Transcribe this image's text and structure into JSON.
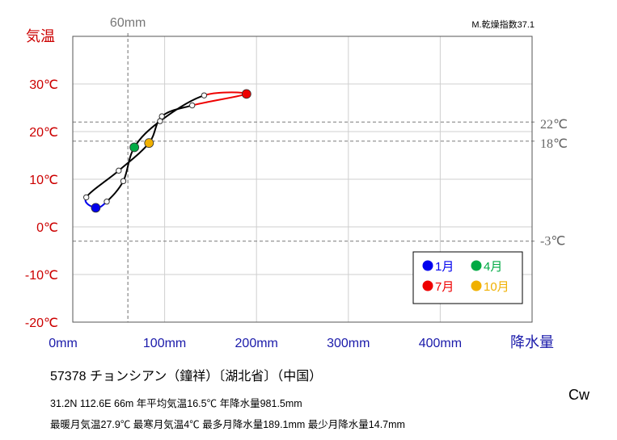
{
  "chart_data": {
    "type": "line",
    "title": "",
    "index_label": "M.乾燥指数37.1",
    "xlabel": "降水量",
    "ylabel": "気温",
    "xlim": [
      0,
      500
    ],
    "ylim": [
      -20,
      40
    ],
    "x_ticks": [
      {
        "value": 0,
        "label": "0mm"
      },
      {
        "value": 100,
        "label": "100mm"
      },
      {
        "value": 200,
        "label": "200mm"
      },
      {
        "value": 300,
        "label": "300mm"
      },
      {
        "value": 400,
        "label": "400mm"
      }
    ],
    "y_ticks": [
      {
        "value": 30,
        "label": "30℃"
      },
      {
        "value": 20,
        "label": "20℃"
      },
      {
        "value": 10,
        "label": "10℃"
      },
      {
        "value": 0,
        "label": "0℃"
      },
      {
        "value": -10,
        "label": "-10℃"
      },
      {
        "value": -20,
        "label": "-20℃"
      }
    ],
    "reference_lines": {
      "vertical": [
        {
          "value": 60,
          "label": "60mm"
        }
      ],
      "horizontal": [
        {
          "value": 22,
          "label": "22℃"
        },
        {
          "value": 18,
          "label": "18℃"
        },
        {
          "value": -3,
          "label": "-3℃"
        }
      ]
    },
    "months": [
      {
        "month": 1,
        "precip": 25,
        "temp": 4.0
      },
      {
        "month": 2,
        "precip": 37,
        "temp": 5.3
      },
      {
        "month": 3,
        "precip": 55,
        "temp": 9.6
      },
      {
        "month": 4,
        "precip": 67,
        "temp": 16.7
      },
      {
        "month": 5,
        "precip": 95,
        "temp": 22.2
      },
      {
        "month": 6,
        "precip": 143,
        "temp": 27.6
      },
      {
        "month": 7,
        "precip": 189.1,
        "temp": 27.9
      },
      {
        "month": 8,
        "precip": 130,
        "temp": 25.5
      },
      {
        "month": 9,
        "precip": 97,
        "temp": 23.2
      },
      {
        "month": 10,
        "precip": 83,
        "temp": 17.6
      },
      {
        "month": 11,
        "precip": 50,
        "temp": 11.8
      },
      {
        "month": 12,
        "precip": 14.7,
        "temp": 6.2
      }
    ],
    "legend": {
      "placement": "bottom-right",
      "entries": [
        {
          "label": "1月",
          "month": 1,
          "color": "#0000ee"
        },
        {
          "label": "4月",
          "month": 4,
          "color": "#00aa44"
        },
        {
          "label": "7月",
          "month": 7,
          "color": "#ee0000"
        },
        {
          "label": "10月",
          "month": 10,
          "color": "#f0b000"
        }
      ]
    },
    "segment_colors": {
      "winter": "#0000ee",
      "summer": "#ee0000",
      "default": "#000000"
    },
    "grid": true
  },
  "station": {
    "line": "57378  チョンシアン（鐘祥）〔湖北省〕（中国）"
  },
  "info": {
    "line1": "31.2N  112.6E 66m  年平均気温16.5℃ 年降水量981.5mm",
    "line2": "最暖月気温27.9℃ 最寒月気温4℃ 最多月降水量189.1mm 最少月降水量14.7mm"
  },
  "climate_class": "Cw",
  "colors": {
    "temp_axis": "#cc0000",
    "precip_axis": "#1a1aaa",
    "reference": "#888888",
    "grid": "#cfcfcf"
  }
}
